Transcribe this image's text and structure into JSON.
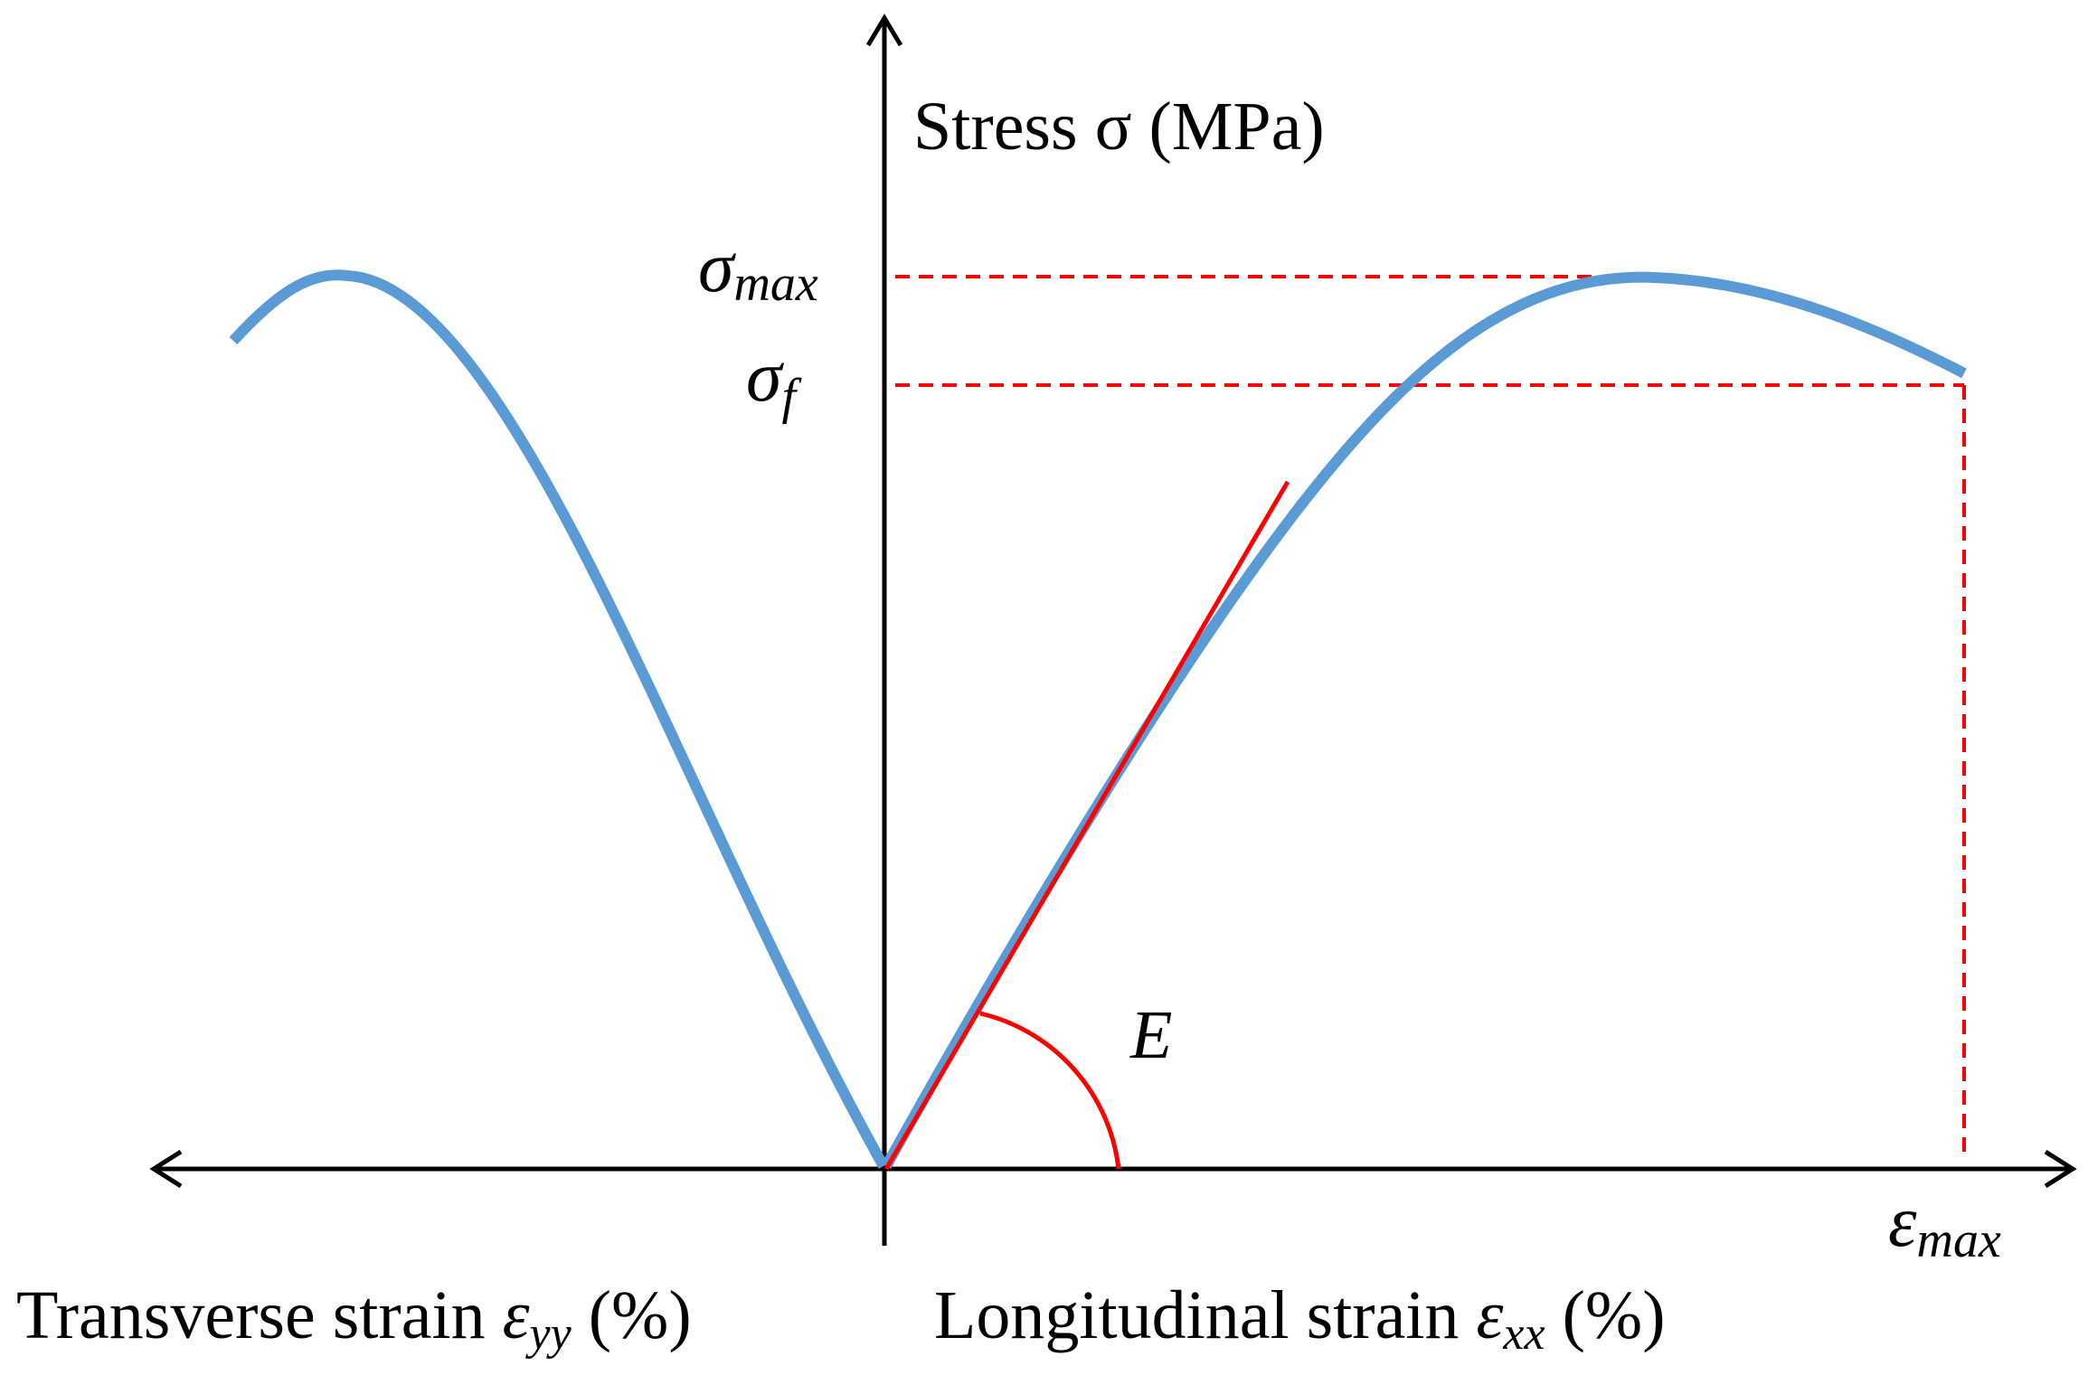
{
  "diagram": {
    "y_axis_label": "Stress σ (MPa)",
    "sigma_max": {
      "base": "σ",
      "sub": "max"
    },
    "sigma_f": {
      "base": "σ",
      "sub": "f"
    },
    "modulus_label": "E",
    "epsilon_max": {
      "base": "ε",
      "sub": "max"
    },
    "transverse_label": {
      "text": "Transverse strain ",
      "symbol": "ε",
      "sub": "yy",
      "unit": " (%)"
    },
    "longitudinal_label": {
      "text": "Longitudinal strain ",
      "symbol": "ε",
      "sub": "xx",
      "unit": " (%)"
    }
  },
  "colors": {
    "curve": "#5b9bd5",
    "reference": "#ff0000",
    "axis": "#000000"
  }
}
